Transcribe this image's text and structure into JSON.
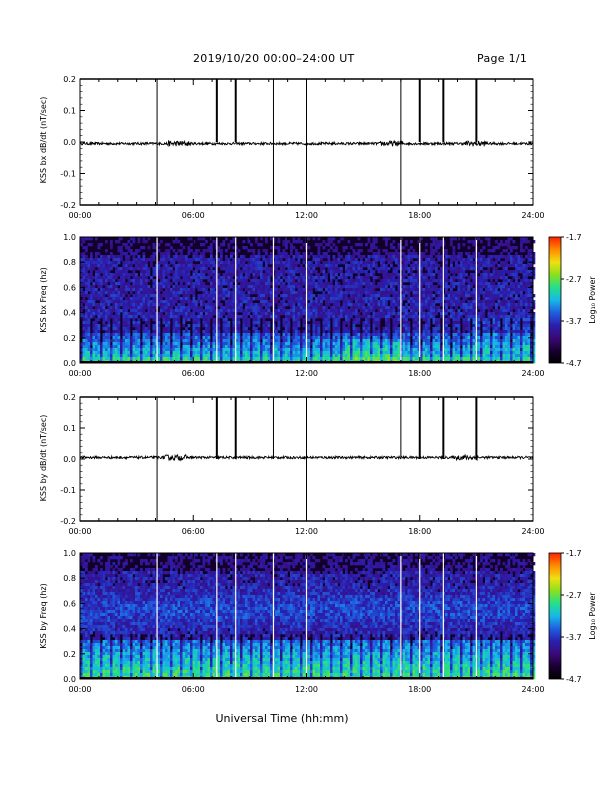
{
  "header": {
    "title": "2019/10/20  00:00–24:00 UT",
    "page": "Page 1/1"
  },
  "xlabel": "Universal Time (hh:mm)",
  "colors": {
    "spectrogram": [
      "#000000",
      "#1a0033",
      "#3a0a78",
      "#2a1fb0",
      "#1f5fe0",
      "#17b8e8",
      "#22e08a",
      "#8ae01e",
      "#f0e010",
      "#ff8a00",
      "#ff2000"
    ],
    "trace": "#000000",
    "gap_line": "#ffffff"
  },
  "chart_data": [
    {
      "type": "line",
      "title": "",
      "ylabel": "KSS bx dB/dt (nT/sec)",
      "xlim": [
        "00:00",
        "24:00"
      ],
      "ylim": [
        -0.2,
        0.2
      ],
      "xticks": [
        "00:00",
        "06:00",
        "12:00",
        "18:00",
        "24:00"
      ],
      "yticks": [
        "-0.2",
        "-0.1",
        "0.0",
        "0.1",
        "0.2"
      ],
      "baseline": -0.005,
      "noise_amplitude": 0.004,
      "disturbance_hours": [
        5.2,
        16.5,
        21.0
      ],
      "gaps": [
        {
          "time": "04:05",
          "range": [
            -0.2,
            0.2
          ]
        },
        {
          "time": "07:15",
          "range": [
            0.0,
            0.2
          ]
        },
        {
          "time": "08:15",
          "range": [
            0.0,
            0.2
          ]
        },
        {
          "time": "10:15",
          "range": [
            -0.2,
            0.2
          ]
        },
        {
          "time": "12:00",
          "range": [
            -0.2,
            0.2
          ]
        },
        {
          "time": "17:00",
          "range": [
            -0.2,
            0.2
          ]
        },
        {
          "time": "18:00",
          "range": [
            0.0,
            0.2
          ]
        },
        {
          "time": "19:15",
          "range": [
            0.0,
            0.2
          ]
        },
        {
          "time": "21:00",
          "range": [
            0.0,
            0.2
          ]
        }
      ]
    },
    {
      "type": "heatmap",
      "title": "",
      "ylabel": "KSS bx Freq (hz)",
      "xlim": [
        "00:00",
        "24:00"
      ],
      "ylim": [
        0.0,
        1.0
      ],
      "xticks": [
        "00:00",
        "06:00",
        "12:00",
        "18:00",
        "24:00"
      ],
      "yticks": [
        "0.0",
        "0.2",
        "0.4",
        "0.6",
        "0.8",
        "1.0"
      ],
      "colorbar_label": "Log₁₀ Power",
      "colorbar_ticks": [
        "-1.7",
        "-2.7",
        "-3.7",
        "-4.7"
      ],
      "color_range": [
        -4.7,
        -1.7
      ],
      "gap_times": [
        "04:05",
        "07:15",
        "08:15",
        "10:15",
        "12:00",
        "17:00",
        "18:00",
        "19:15",
        "21:00"
      ],
      "profile": "bx"
    },
    {
      "type": "line",
      "title": "",
      "ylabel": "KSS by dB/dt (nT/sec)",
      "xlim": [
        "00:00",
        "24:00"
      ],
      "ylim": [
        -0.2,
        0.2
      ],
      "xticks": [
        "00:00",
        "06:00",
        "12:00",
        "18:00",
        "24:00"
      ],
      "yticks": [
        "-0.2",
        "-0.1",
        "0.0",
        "0.1",
        "0.2"
      ],
      "baseline": 0.005,
      "noise_amplitude": 0.004,
      "disturbance_hours": [
        5.0,
        20.5
      ],
      "gaps": [
        {
          "time": "04:05",
          "range": [
            -0.2,
            0.2
          ]
        },
        {
          "time": "07:15",
          "range": [
            0.0,
            0.2
          ]
        },
        {
          "time": "08:15",
          "range": [
            0.0,
            0.2
          ]
        },
        {
          "time": "10:15",
          "range": [
            0.0,
            0.2
          ]
        },
        {
          "time": "12:00",
          "range": [
            -0.2,
            0.2
          ]
        },
        {
          "time": "17:00",
          "range": [
            0.0,
            0.2
          ]
        },
        {
          "time": "18:00",
          "range": [
            0.0,
            0.2
          ]
        },
        {
          "time": "19:15",
          "range": [
            0.0,
            0.2
          ]
        },
        {
          "time": "21:00",
          "range": [
            0.0,
            0.2
          ]
        }
      ]
    },
    {
      "type": "heatmap",
      "title": "",
      "ylabel": "KSS by Freq (hz)",
      "xlim": [
        "00:00",
        "24:00"
      ],
      "ylim": [
        0.0,
        1.0
      ],
      "xticks": [
        "00:00",
        "06:00",
        "12:00",
        "18:00",
        "24:00"
      ],
      "yticks": [
        "0.0",
        "0.2",
        "0.4",
        "0.6",
        "0.8",
        "1.0"
      ],
      "colorbar_label": "Log₁₀ Power",
      "colorbar_ticks": [
        "-1.7",
        "-2.7",
        "-3.7",
        "-4.7"
      ],
      "color_range": [
        -4.7,
        -1.7
      ],
      "gap_times": [
        "04:05",
        "07:15",
        "08:15",
        "10:15",
        "12:00",
        "17:00",
        "18:00",
        "19:15",
        "21:00"
      ],
      "profile": "by"
    }
  ]
}
